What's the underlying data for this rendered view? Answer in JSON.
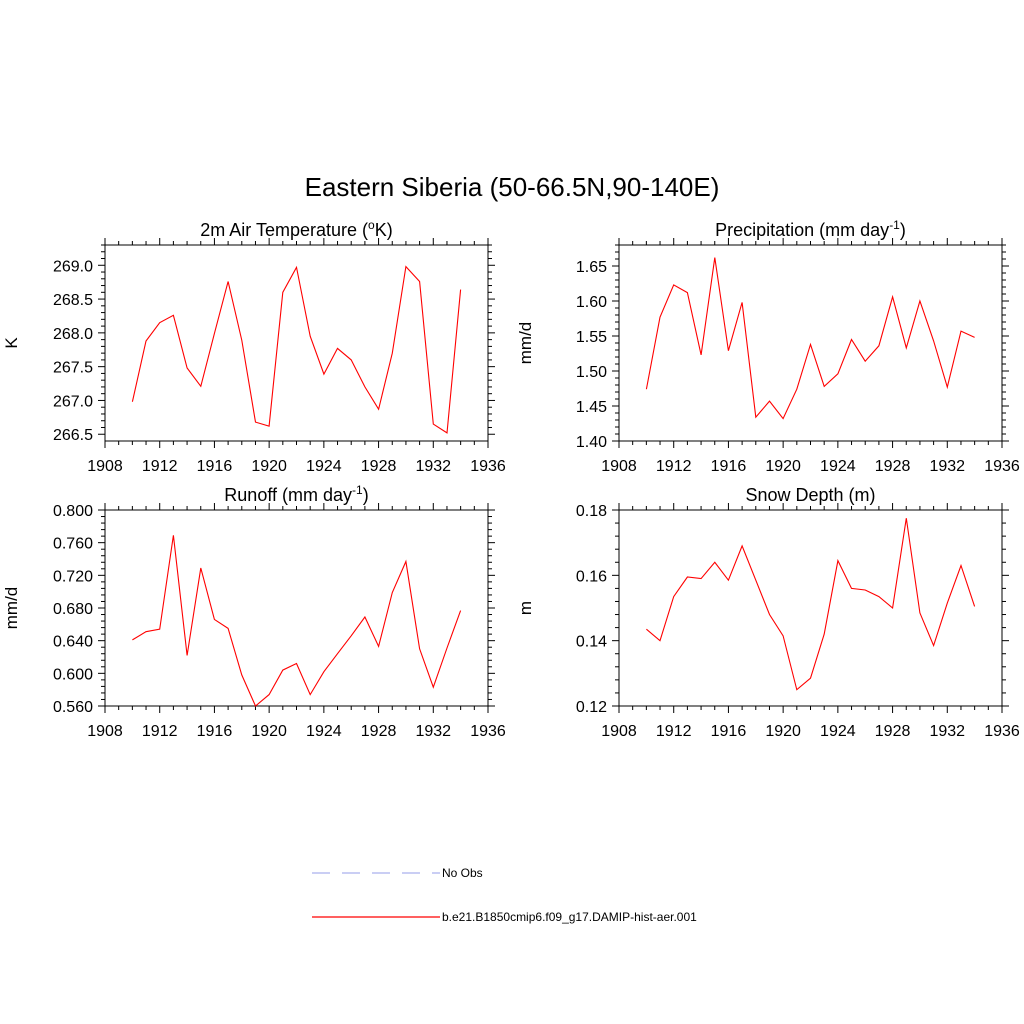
{
  "main_title": "Eastern Siberia (50-66.5N,90-140E)",
  "chart_data": [
    {
      "type": "line",
      "title": "2m Air Temperature (",
      "title_sup": "o",
      "title_end": "K)",
      "ylabel": "K",
      "xlim": [
        1908,
        1936
      ],
      "ylim": [
        266.4,
        269.3
      ],
      "xticks": [
        1908,
        1912,
        1916,
        1920,
        1924,
        1928,
        1932,
        1936
      ],
      "yticks": [
        266.5,
        267.0,
        267.5,
        268.0,
        268.5,
        269.0
      ],
      "ytick_decimals": 1,
      "x": [
        1910,
        1911,
        1912,
        1913,
        1914,
        1915,
        1916,
        1917,
        1918,
        1919,
        1920,
        1921,
        1922,
        1923,
        1924,
        1925,
        1926,
        1927,
        1928,
        1929,
        1930,
        1931,
        1932,
        1933,
        1934
      ],
      "y": [
        266.98,
        267.88,
        268.15,
        268.26,
        267.48,
        267.21,
        267.99,
        268.76,
        267.89,
        266.68,
        266.62,
        268.6,
        268.97,
        267.95,
        267.39,
        267.77,
        267.6,
        267.2,
        266.87,
        267.7,
        268.98,
        268.76,
        266.65,
        266.52,
        268.64
      ],
      "color": "#ff0000"
    },
    {
      "type": "line",
      "title": "Precipitation (mm day",
      "title_sup": "-1",
      "title_end": ")",
      "ylabel": "mm/d",
      "xlim": [
        1908,
        1936
      ],
      "ylim": [
        1.4,
        1.68
      ],
      "xticks": [
        1908,
        1912,
        1916,
        1920,
        1924,
        1928,
        1932,
        1936
      ],
      "yticks": [
        1.4,
        1.45,
        1.5,
        1.55,
        1.6,
        1.65
      ],
      "ytick_decimals": 2,
      "x": [
        1910,
        1911,
        1912,
        1913,
        1914,
        1915,
        1916,
        1917,
        1918,
        1919,
        1920,
        1921,
        1922,
        1923,
        1924,
        1925,
        1926,
        1927,
        1928,
        1929,
        1930,
        1931,
        1932,
        1933,
        1934
      ],
      "y": [
        1.474,
        1.577,
        1.623,
        1.612,
        1.523,
        1.662,
        1.529,
        1.598,
        1.434,
        1.457,
        1.432,
        1.474,
        1.538,
        1.478,
        1.496,
        1.545,
        1.514,
        1.536,
        1.606,
        1.533,
        1.6,
        1.543,
        1.477,
        1.557,
        1.548
      ],
      "color": "#ff0000"
    },
    {
      "type": "line",
      "title": "Runoff (mm day",
      "title_sup": "-1",
      "title_end": ")",
      "ylabel": "mm/d",
      "xlim": [
        1908,
        1936
      ],
      "ylim": [
        0.56,
        0.8
      ],
      "xticks": [
        1908,
        1912,
        1916,
        1920,
        1924,
        1928,
        1932,
        1936
      ],
      "yticks": [
        0.56,
        0.6,
        0.64,
        0.68,
        0.72,
        0.76,
        0.8
      ],
      "ytick_decimals": 3,
      "x": [
        1910,
        1911,
        1912,
        1913,
        1914,
        1915,
        1916,
        1917,
        1918,
        1919,
        1920,
        1921,
        1922,
        1923,
        1924,
        1925,
        1926,
        1927,
        1928,
        1929,
        1930,
        1931,
        1932,
        1933,
        1934
      ],
      "y": [
        0.641,
        0.651,
        0.654,
        0.769,
        0.622,
        0.729,
        0.666,
        0.655,
        0.598,
        0.56,
        0.574,
        0.604,
        0.612,
        0.574,
        0.602,
        0.624,
        0.646,
        0.669,
        0.633,
        0.699,
        0.737,
        0.63,
        0.583,
        0.631,
        0.677
      ],
      "color": "#ff0000"
    },
    {
      "type": "line",
      "title": "Snow Depth (m)",
      "title_sup": "",
      "title_end": "",
      "ylabel": "m",
      "xlim": [
        1908,
        1936
      ],
      "ylim": [
        0.12,
        0.18
      ],
      "xticks": [
        1908,
        1912,
        1916,
        1920,
        1924,
        1928,
        1932,
        1936
      ],
      "yticks": [
        0.12,
        0.14,
        0.16,
        0.18
      ],
      "ytick_decimals": 2,
      "x": [
        1910,
        1911,
        1912,
        1913,
        1914,
        1915,
        1916,
        1917,
        1918,
        1919,
        1920,
        1921,
        1922,
        1923,
        1924,
        1925,
        1926,
        1927,
        1928,
        1929,
        1930,
        1931,
        1932,
        1933,
        1934
      ],
      "y": [
        0.1435,
        0.14,
        0.1535,
        0.1595,
        0.159,
        0.164,
        0.1585,
        0.169,
        0.1585,
        0.148,
        0.1415,
        0.125,
        0.1285,
        0.142,
        0.1645,
        0.156,
        0.1555,
        0.1535,
        0.15,
        0.1775,
        0.1485,
        0.1385,
        0.1515,
        0.163,
        0.1505
      ],
      "color": "#ff0000"
    }
  ],
  "legend": [
    {
      "label": "No Obs",
      "style": "dashed",
      "color": "#aab0ee"
    },
    {
      "label": "b.e21.B1850cmip6.f09_g17.DAMIP-hist-aer.001",
      "style": "solid",
      "color": "#ff0000"
    }
  ]
}
